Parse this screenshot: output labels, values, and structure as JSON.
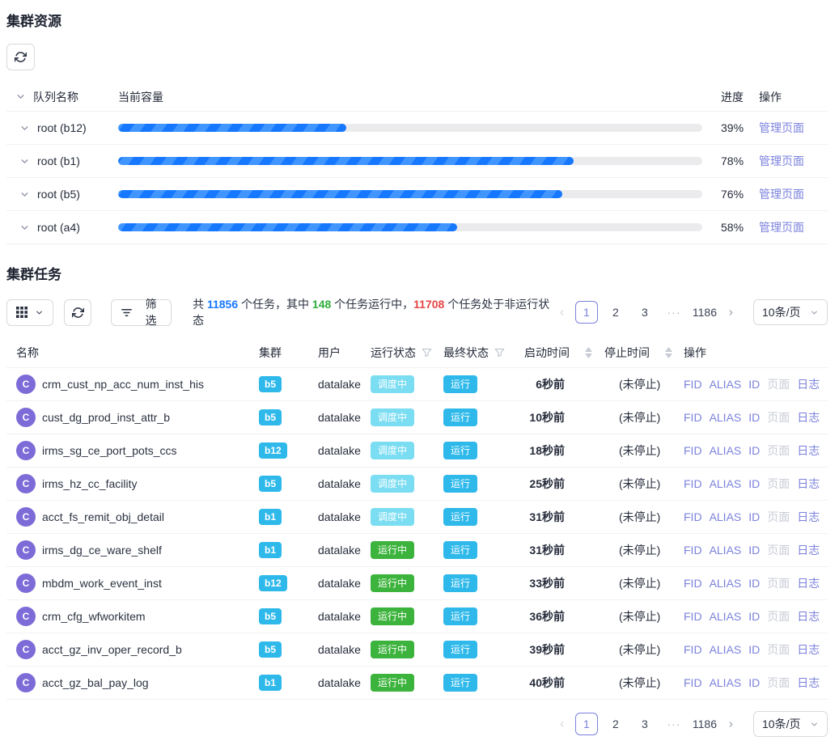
{
  "colors": {
    "link_purple": "#7b82dc",
    "progress_blue": "#1677ff",
    "progress_stripe": "#4095ff",
    "progress_track": "#ebebed",
    "cluster_badge_cyan": "#2eb9ea",
    "tag_scheduling_cyan": "#7bddf2",
    "tag_final_run_cyan": "#2eb9ea",
    "tag_running_green": "#3cb33c",
    "count_blue": "#1677ff",
    "count_green": "#2fae3b",
    "count_red": "#e64545",
    "avatar_purple": "#7d6bd7"
  },
  "resources": {
    "title": "集群资源",
    "header": {
      "queue": "队列名称",
      "capacity": "当前容量",
      "progress": "进度",
      "action": "操作"
    },
    "manage_label": "管理页面",
    "rows": [
      {
        "queue": "root (b12)",
        "percent": "39%",
        "value": 39
      },
      {
        "queue": "root (b1)",
        "percent": "78%",
        "value": 78
      },
      {
        "queue": "root (b5)",
        "percent": "76%",
        "value": 76
      },
      {
        "queue": "root (a4)",
        "percent": "58%",
        "value": 58
      }
    ]
  },
  "tasks": {
    "title": "集群任务",
    "toolbar": {
      "filter_label": "筛选",
      "summary": {
        "prefix": "共 ",
        "total": "11856",
        "mid1": " 个任务，其中 ",
        "running": "148",
        "mid2": " 个任务运行中，",
        "non_running": "11708",
        "suffix": " 个任务处于非运行状态"
      }
    },
    "pagination": {
      "pages": [
        "1",
        "2",
        "3",
        "···",
        "1186"
      ],
      "active": "1",
      "page_size": "10条/页"
    },
    "header": {
      "name": "名称",
      "cluster": "集群",
      "user": "用户",
      "run_status": "运行状态",
      "final_status": "最终状态",
      "start_time": "启动时间",
      "stop_time": "停止时间",
      "action": "操作"
    },
    "ops": [
      {
        "label": "FID",
        "disabled": false
      },
      {
        "label": "ALIAS",
        "disabled": false
      },
      {
        "label": "ID",
        "disabled": false
      },
      {
        "label": "页面",
        "disabled": true
      },
      {
        "label": "日志",
        "disabled": false
      }
    ],
    "rows": [
      {
        "avatar": "C",
        "name": "crm_cust_np_acc_num_inst_his",
        "cluster": "b5",
        "user": "datalake",
        "run_status": "调度中",
        "run_status_type": "scheduling",
        "final_status": "运行",
        "start": "6秒前",
        "stop": "(未停止)"
      },
      {
        "avatar": "C",
        "name": "cust_dg_prod_inst_attr_b",
        "cluster": "b5",
        "user": "datalake",
        "run_status": "调度中",
        "run_status_type": "scheduling",
        "final_status": "运行",
        "start": "10秒前",
        "stop": "(未停止)"
      },
      {
        "avatar": "C",
        "name": "irms_sg_ce_port_pots_ccs",
        "cluster": "b12",
        "user": "datalake",
        "run_status": "调度中",
        "run_status_type": "scheduling",
        "final_status": "运行",
        "start": "18秒前",
        "stop": "(未停止)"
      },
      {
        "avatar": "C",
        "name": "irms_hz_cc_facility",
        "cluster": "b5",
        "user": "datalake",
        "run_status": "调度中",
        "run_status_type": "scheduling",
        "final_status": "运行",
        "start": "25秒前",
        "stop": "(未停止)"
      },
      {
        "avatar": "C",
        "name": "acct_fs_remit_obj_detail",
        "cluster": "b1",
        "user": "datalake",
        "run_status": "调度中",
        "run_status_type": "scheduling",
        "final_status": "运行",
        "start": "31秒前",
        "stop": "(未停止)"
      },
      {
        "avatar": "C",
        "name": "irms_dg_ce_ware_shelf",
        "cluster": "b1",
        "user": "datalake",
        "run_status": "运行中",
        "run_status_type": "running",
        "final_status": "运行",
        "start": "31秒前",
        "stop": "(未停止)"
      },
      {
        "avatar": "C",
        "name": "mbdm_work_event_inst",
        "cluster": "b12",
        "user": "datalake",
        "run_status": "运行中",
        "run_status_type": "running",
        "final_status": "运行",
        "start": "33秒前",
        "stop": "(未停止)"
      },
      {
        "avatar": "C",
        "name": "crm_cfg_wfworkitem",
        "cluster": "b5",
        "user": "datalake",
        "run_status": "运行中",
        "run_status_type": "running",
        "final_status": "运行",
        "start": "36秒前",
        "stop": "(未停止)"
      },
      {
        "avatar": "C",
        "name": "acct_gz_inv_oper_record_b",
        "cluster": "b5",
        "user": "datalake",
        "run_status": "运行中",
        "run_status_type": "running",
        "final_status": "运行",
        "start": "39秒前",
        "stop": "(未停止)"
      },
      {
        "avatar": "C",
        "name": "acct_gz_bal_pay_log",
        "cluster": "b1",
        "user": "datalake",
        "run_status": "运行中",
        "run_status_type": "running",
        "final_status": "运行",
        "start": "40秒前",
        "stop": "(未停止)"
      }
    ]
  }
}
